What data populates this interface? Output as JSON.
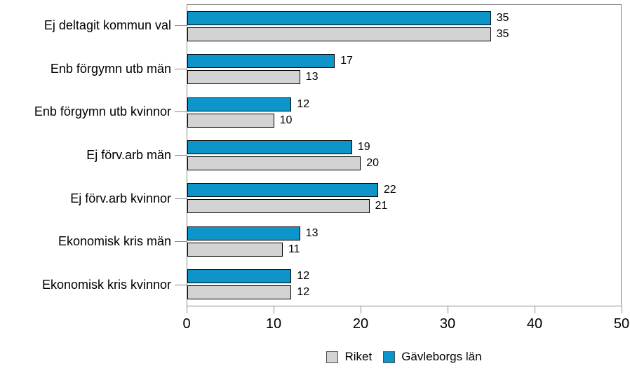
{
  "chart_data": {
    "type": "bar",
    "orientation": "horizontal",
    "title": "",
    "xlabel": "",
    "ylabel": "",
    "categories": [
      "Ej deltagit kommun val",
      "Enb förgymn utb män",
      "Enb förgymn utb kvinnor",
      "Ej förv.arb män",
      "Ej förv.arb kvinnor",
      "Ekonomisk kris män",
      "Ekonomisk kris kvinnor"
    ],
    "series": [
      {
        "name": "Gävleborgs län",
        "color": "#0d94c9",
        "values": [
          35,
          17,
          12,
          19,
          22,
          13,
          12
        ]
      },
      {
        "name": "Riket",
        "color": "#d3d3d3",
        "values": [
          35,
          13,
          10,
          20,
          21,
          11,
          12
        ]
      }
    ],
    "xlim": [
      0,
      50
    ],
    "x_ticks": [
      0,
      10,
      20,
      30,
      40,
      50
    ],
    "grid": false,
    "value_labels": true,
    "legend_position": "bottom",
    "legend": [
      {
        "label": "Riket",
        "color": "#d3d3d3"
      },
      {
        "label": "Gävleborgs län",
        "color": "#0d94c9"
      }
    ],
    "colors": {
      "bar_border": "#000000",
      "axis_frame": "#8a8a8a",
      "text": "#000000",
      "background": "#ffffff"
    }
  }
}
